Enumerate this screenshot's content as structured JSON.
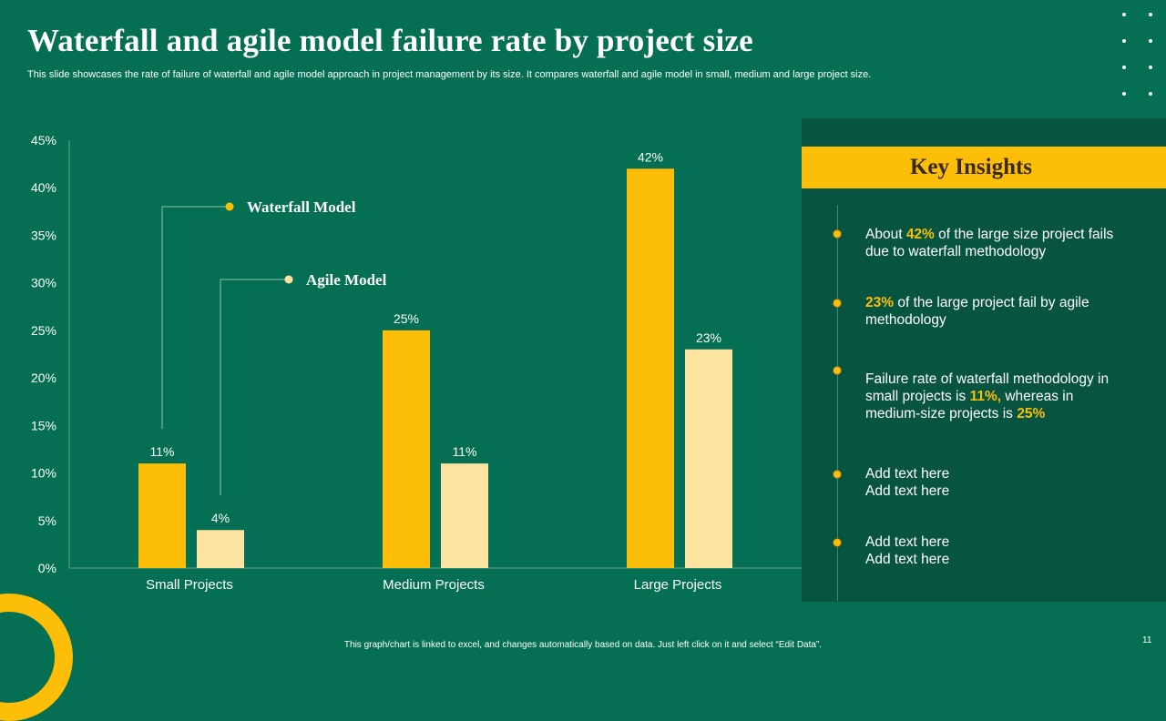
{
  "title": "Waterfall and agile model failure rate by project size",
  "subtitle": "This slide showcases the rate of failure of waterfall and agile model approach in project management by its size. It compares waterfall and agile model in small, medium and large project size.",
  "colors": {
    "background": "#046f52",
    "panel": "#075440",
    "waterfall": "#fcbe06",
    "agile": "#fde5a1",
    "text": "#ffffff"
  },
  "chart_data": {
    "type": "bar",
    "categories": [
      "Small Projects",
      "Medium Projects",
      "Large Projects"
    ],
    "series": [
      {
        "name": "Waterfall Model",
        "values": [
          11,
          25,
          42
        ],
        "labels": [
          "11%",
          "25%",
          "42%"
        ]
      },
      {
        "name": "Agile Model",
        "values": [
          4,
          11,
          23
        ],
        "labels": [
          "4%",
          "11%",
          "23%"
        ]
      }
    ],
    "ylim": [
      0,
      45
    ],
    "yticks": [
      0,
      5,
      10,
      15,
      20,
      25,
      30,
      35,
      40,
      45
    ],
    "ytick_labels": [
      "0%",
      "5%",
      "10%",
      "15%",
      "20%",
      "25%",
      "30%",
      "35%",
      "40%",
      "45%"
    ],
    "xlabel": "",
    "ylabel": "",
    "grid": false,
    "legend": "callouts on left bars"
  },
  "insights": {
    "heading": "Key Insights",
    "items": [
      {
        "pre": "About ",
        "hl1": "42%",
        "mid": " of the large size project fails due to waterfall methodology",
        "hl2": "",
        "post": ""
      },
      {
        "pre": "",
        "hl1": "23%",
        "mid": " of the large project fail by agile methodology",
        "hl2": "",
        "post": ""
      },
      {
        "pre": "Failure rate of waterfall methodology in small projects is ",
        "hl1": "11%,",
        "mid": " whereas in medium-size projects is ",
        "hl2": "25%",
        "post": ""
      },
      {
        "pre": "Add text here",
        "hl1": "",
        "mid": "",
        "hl2": "",
        "post": "Add text here"
      },
      {
        "pre": "Add text here",
        "hl1": "",
        "mid": "",
        "hl2": "",
        "post": "Add text here"
      }
    ]
  },
  "footer": "This graph/chart is linked to excel, and changes automatically based on data. Just left click on it and select “Edit Data”.",
  "page_number": "11"
}
